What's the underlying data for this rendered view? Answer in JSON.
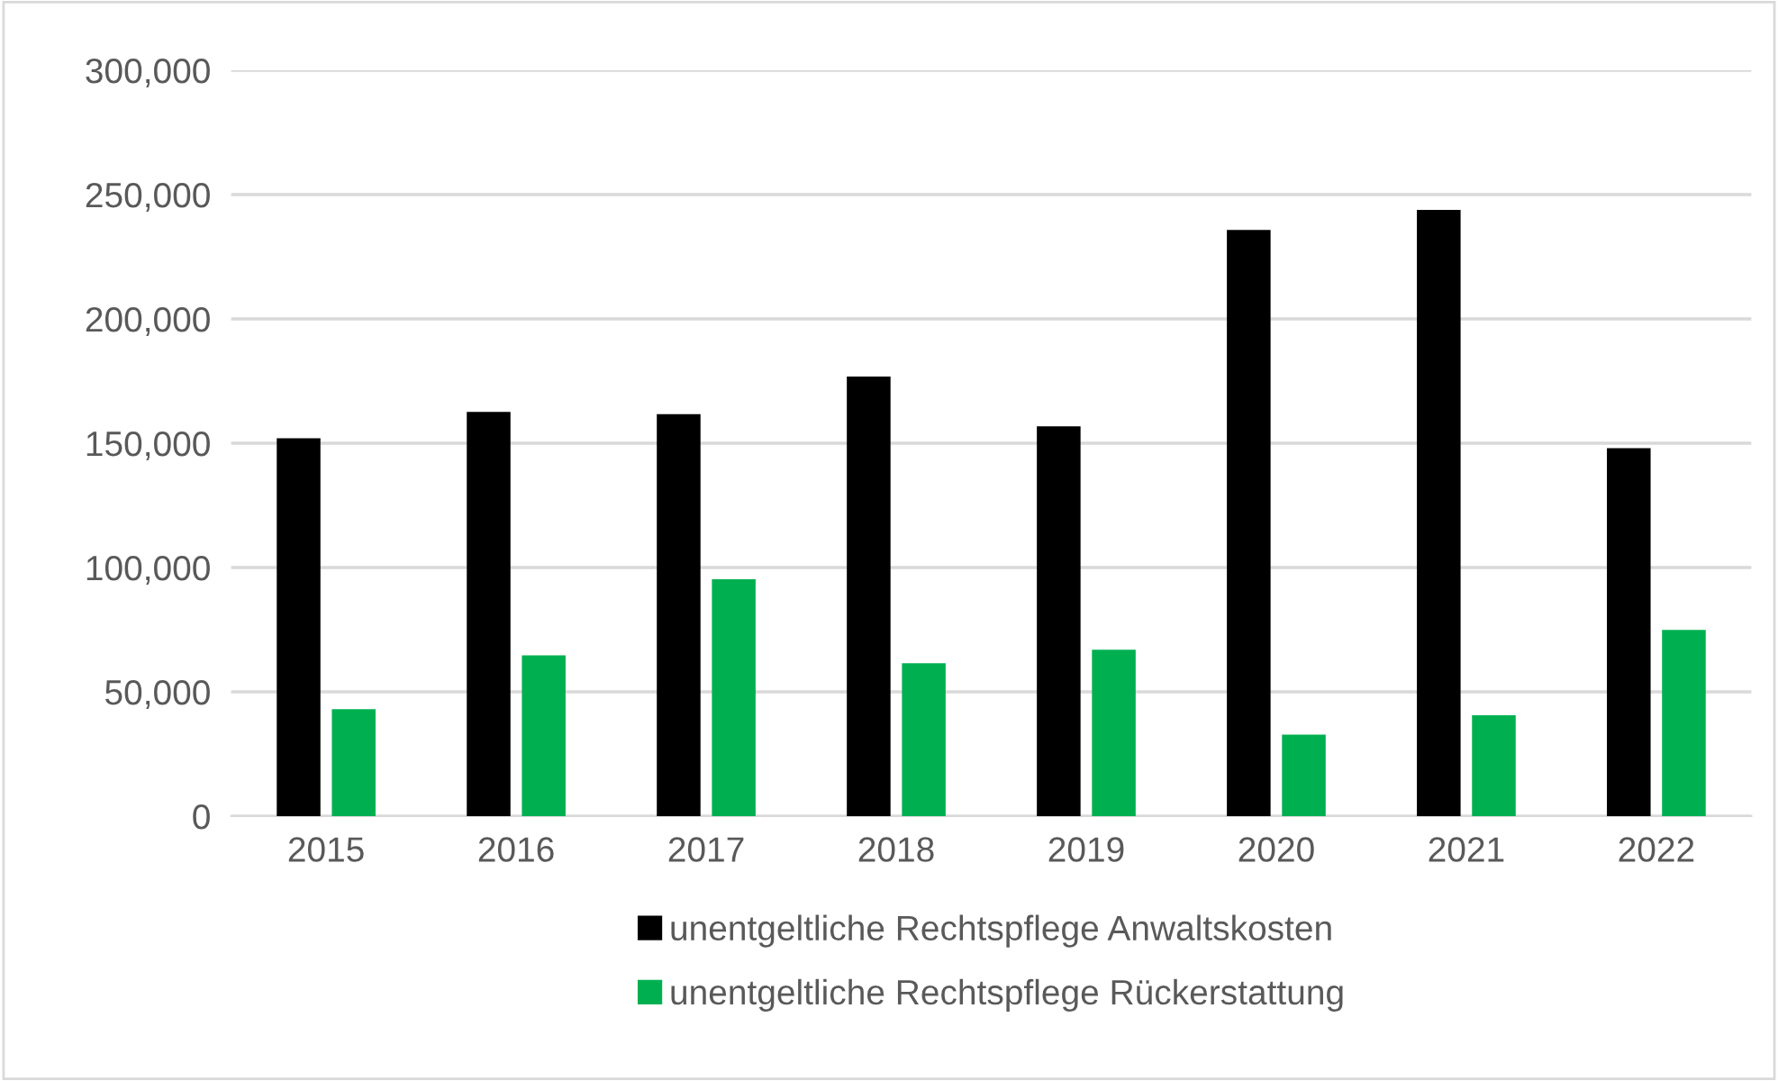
{
  "chart_data": {
    "type": "bar",
    "categories": [
      "2015",
      "2016",
      "2017",
      "2018",
      "2019",
      "2020",
      "2021",
      "2022"
    ],
    "series": [
      {
        "name": "unentgeltliche Rechtspflege Anwaltskosten",
        "color": "#000000",
        "values": [
          152000,
          162600,
          161700,
          176800,
          156800,
          235800,
          243800,
          148000
        ]
      },
      {
        "name": "unentgeltliche Rechtspflege Rückerstattung",
        "color": "#00b050",
        "values": [
          43000,
          64700,
          95300,
          61500,
          66900,
          32800,
          40600,
          74900
        ]
      }
    ],
    "ylim": [
      0,
      300000
    ],
    "yticks": [
      {
        "value": 0,
        "label": "0"
      },
      {
        "value": 50000,
        "label": "50,000"
      },
      {
        "value": 100000,
        "label": "100,000"
      },
      {
        "value": 150000,
        "label": "150,000"
      },
      {
        "value": 200000,
        "label": "200,000"
      },
      {
        "value": 250000,
        "label": "250,000"
      },
      {
        "value": 300000,
        "label": "300,000"
      }
    ],
    "grid": "y",
    "legend": "bottom"
  }
}
